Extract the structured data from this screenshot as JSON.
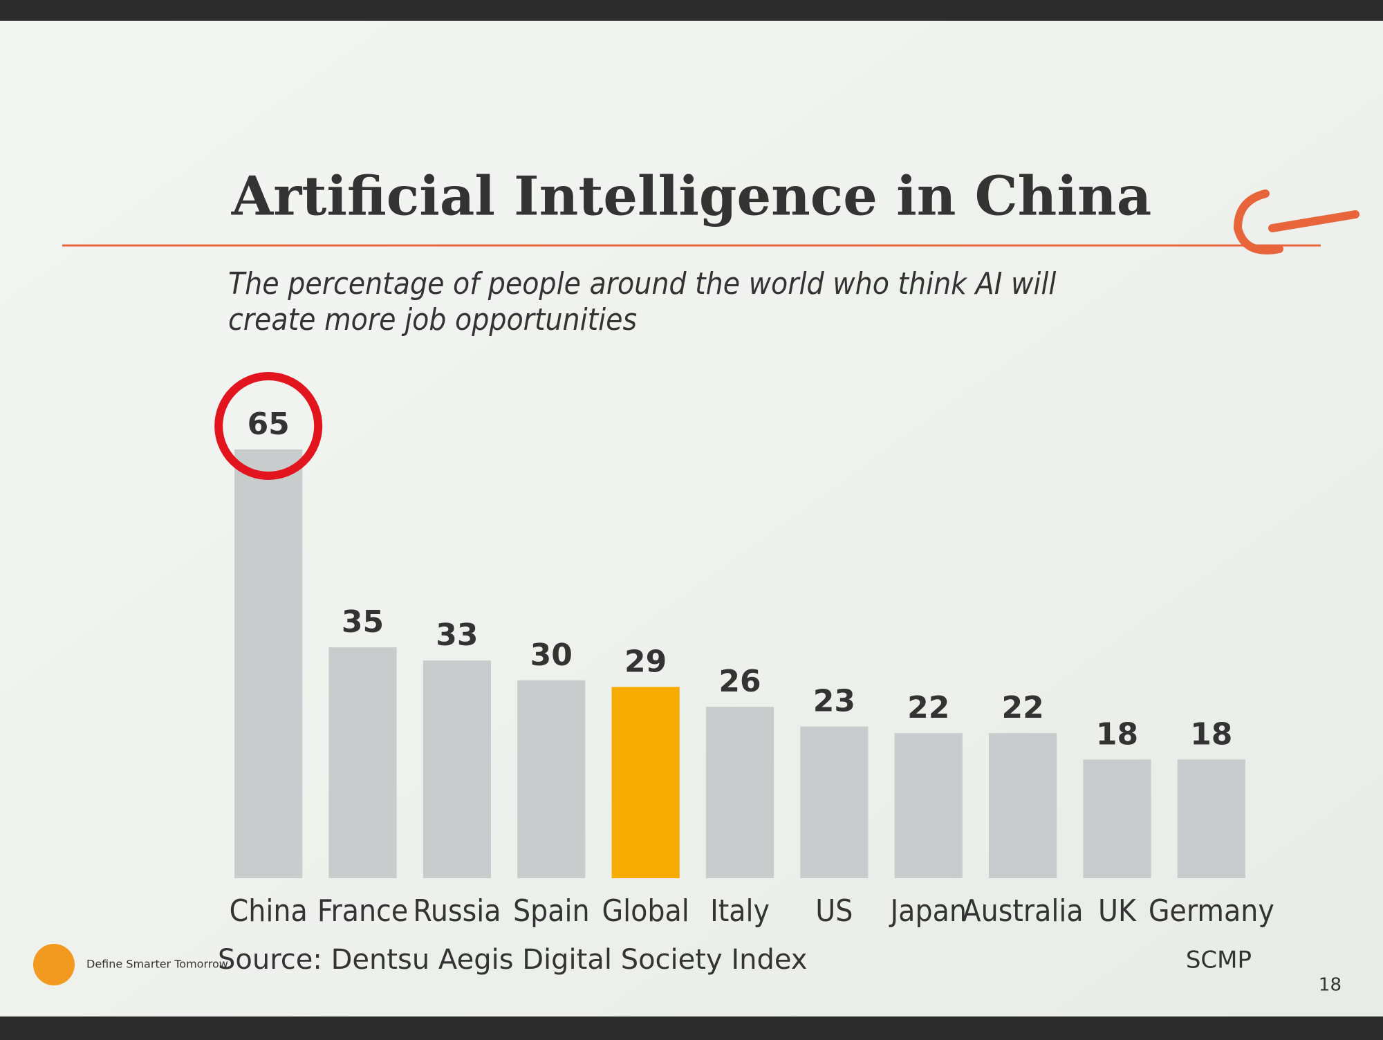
{
  "chart_data": {
    "type": "bar",
    "title": "Artificial Intelligence in China",
    "subtitle": "The percentage of people around the world who think AI will create more job opportunities",
    "categories": [
      "China",
      "France",
      "Russia",
      "Spain",
      "Global",
      "Italy",
      "US",
      "Japan",
      "Australia",
      "UK",
      "Germany"
    ],
    "values": [
      65,
      35,
      33,
      30,
      29,
      26,
      23,
      22,
      22,
      18,
      18
    ],
    "colors": [
      "#c9cccc",
      "#c9cccc",
      "#c9cccc",
      "#c9cccc",
      "#f5ab00",
      "#c9cccc",
      "#c9cccc",
      "#c9cccc",
      "#c9cccc",
      "#c9cccc",
      "#c9cccc"
    ],
    "circled": 0,
    "source": "Source: Dentsu Aegis Digital Society Index",
    "credit": "SCMP",
    "brand": "Define Smarter Tomorrow.",
    "page_number": "18"
  }
}
